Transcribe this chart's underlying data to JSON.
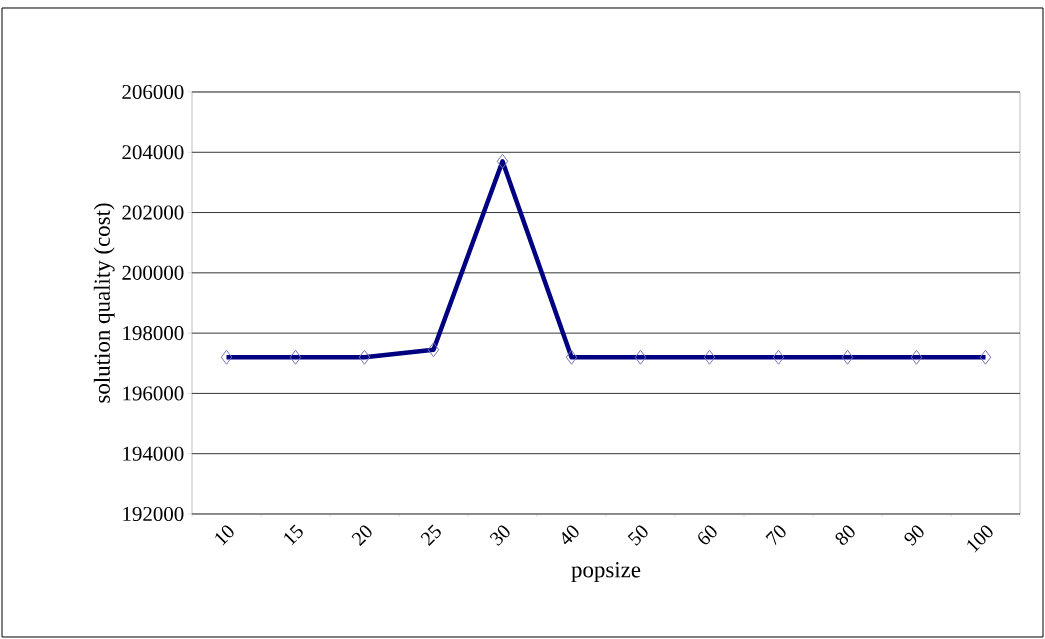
{
  "chart_data": {
    "type": "line",
    "xlabel": "popsize",
    "ylabel": "solution quality (cost)",
    "categories": [
      "10",
      "15",
      "20",
      "25",
      "30",
      "40",
      "50",
      "60",
      "70",
      "80",
      "90",
      "100"
    ],
    "series": [
      {
        "color": "#000080",
        "values": [
          197200,
          197200,
          197200,
          197450,
          203700,
          197200,
          197200,
          197200,
          197200,
          197200,
          197200,
          197200
        ]
      }
    ],
    "ylim": [
      192000,
      206000
    ],
    "yticks": [
      192000,
      194000,
      196000,
      198000,
      200000,
      202000,
      204000,
      206000
    ],
    "grid": "y",
    "marker": "diamond",
    "line_style": "solid"
  }
}
